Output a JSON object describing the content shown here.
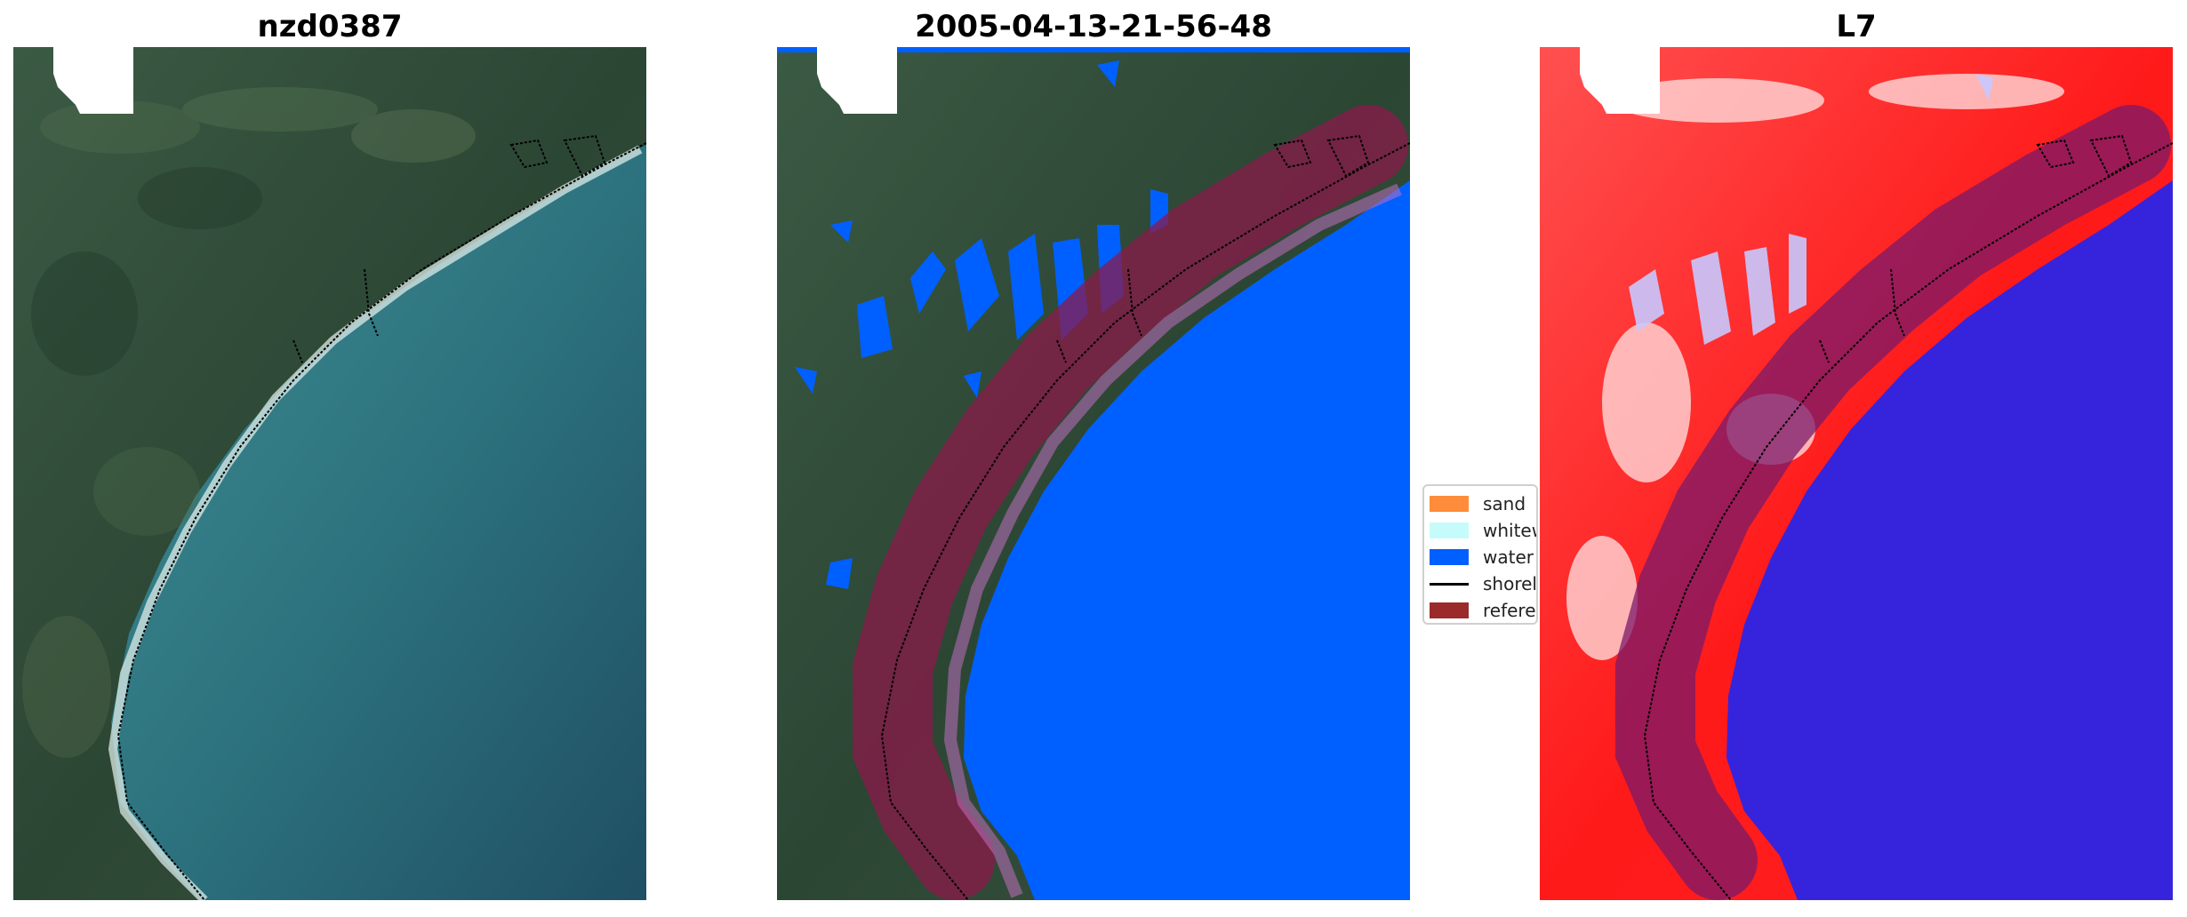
{
  "panels": [
    {
      "title": "nzd0387"
    },
    {
      "title": "2005-04-13-21-56-48"
    },
    {
      "title": "L7"
    }
  ],
  "legend": {
    "items": [
      {
        "label": "sand",
        "color": "#ff8c3a",
        "kind": "patch"
      },
      {
        "label": "whitew",
        "color": "#c6fbfb",
        "kind": "patch"
      },
      {
        "label": "water",
        "color": "#0060ff",
        "kind": "patch"
      },
      {
        "label": "shorel",
        "color": "#000000",
        "kind": "line"
      },
      {
        "label": "referen",
        "color": "#9b2b2b",
        "kind": "patch"
      }
    ]
  },
  "colors": {
    "water_rgb": "#2a6f7c",
    "land_rgb": "#2f4a37",
    "class_water": "#0060ff",
    "reference_buffer": "#8b1a4a",
    "index_land": "#ff1010",
    "index_water": "#2525ee"
  }
}
